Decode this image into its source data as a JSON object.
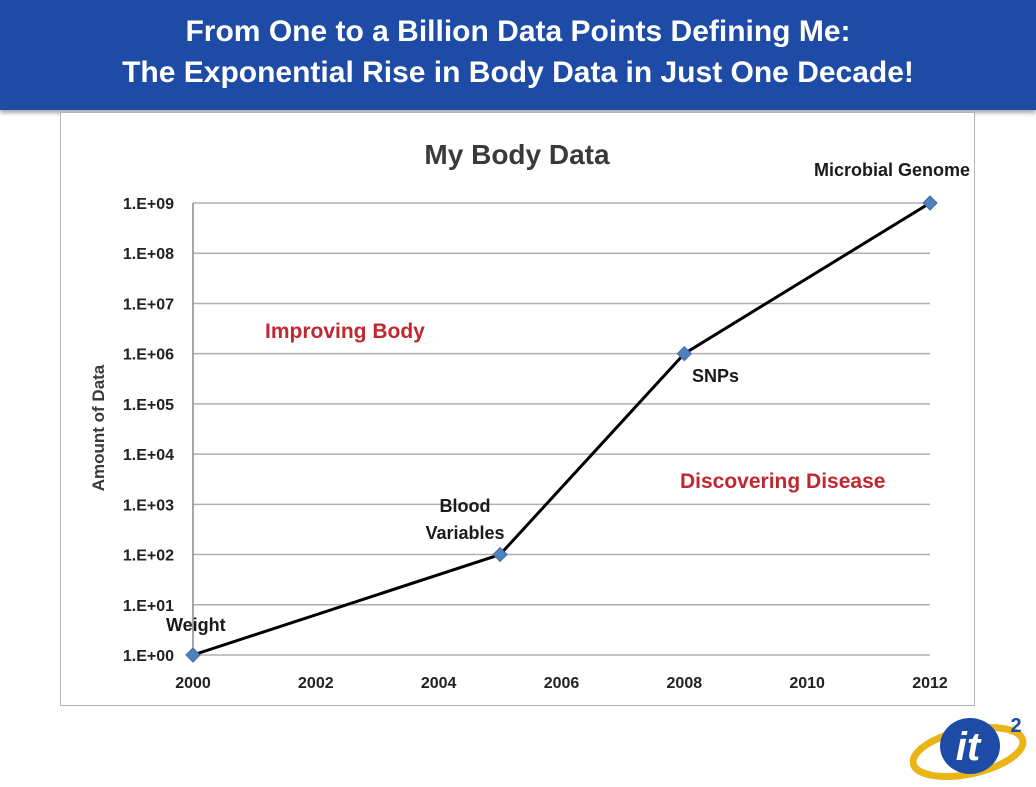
{
  "header": {
    "line1": "From One to a Billion Data Points Defining Me:",
    "line2": "The Exponential Rise in Body Data in Just One Decade!"
  },
  "chart_data": {
    "type": "line",
    "title": "My Body Data",
    "xlabel": "",
    "ylabel": "Amount of Data",
    "y_scale": "log",
    "x_ticks": [
      "2000",
      "2002",
      "2004",
      "2006",
      "2008",
      "2010",
      "2012"
    ],
    "y_ticks": [
      "1.E+00",
      "1.E+01",
      "1.E+02",
      "1.E+03",
      "1.E+04",
      "1.E+05",
      "1.E+06",
      "1.E+07",
      "1.E+08",
      "1.E+09"
    ],
    "xlim": [
      2000,
      2012
    ],
    "ylim": [
      1,
      1000000000
    ],
    "grid": true,
    "series": [
      {
        "x": [
          2000,
          2005,
          2008,
          2012
        ],
        "values": [
          1,
          100,
          1000000,
          1000000000
        ],
        "point_labels": [
          "Weight",
          "Blood Variables",
          "SNPs",
          "Microbial Genome"
        ]
      }
    ],
    "annotations": [
      "Improving Body",
      "Discovering Disease"
    ],
    "colors": {
      "line": "#000000",
      "marker": "#4f81bd",
      "grid": "#b0b0b0",
      "annotation": "#c0282f"
    }
  },
  "colors": {
    "banner": "#1d4ba6",
    "banner_text": "#ffffff"
  },
  "logo": {
    "icon": "it2-logo",
    "text": "it",
    "superscript": "2"
  }
}
